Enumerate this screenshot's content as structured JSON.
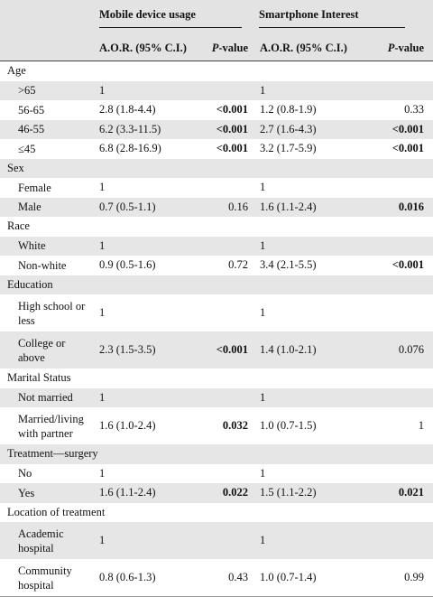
{
  "header": {
    "group1": "Mobile device usage",
    "group2": "Smartphone Interest",
    "aor1": "A.O.R. (95% C.I.)",
    "p1_prefix": "P",
    "p1_suffix": "-value",
    "aor2": "A.O.R. (95% C.I.)",
    "p2_prefix": "P",
    "p2_suffix": "-value"
  },
  "sections": {
    "age": {
      "title": "Age",
      "rows": [
        {
          "label": ">65",
          "mdu_aor": "1",
          "mdu_p": "",
          "si_aor": "1",
          "si_p": ""
        },
        {
          "label": "56-65",
          "mdu_aor": "2.8 (1.8-4.4)",
          "mdu_p": "<0.001",
          "si_aor": "1.2 (0.8-1.9)",
          "si_p": "0.33"
        },
        {
          "label": "46-55",
          "mdu_aor": "6.2 (3.3-11.5)",
          "mdu_p": "<0.001",
          "si_aor": "2.7 (1.6-4.3)",
          "si_p": "<0.001"
        },
        {
          "label": "≤45",
          "mdu_aor": "6.8 (2.8-16.9)",
          "mdu_p": "<0.001",
          "si_aor": "3.2 (1.7-5.9)",
          "si_p": "<0.001"
        }
      ]
    },
    "sex": {
      "title": "Sex",
      "rows": [
        {
          "label": "Female",
          "mdu_aor": "1",
          "mdu_p": "",
          "si_aor": "1",
          "si_p": ""
        },
        {
          "label": "Male",
          "mdu_aor": "0.7 (0.5-1.1)",
          "mdu_p": "0.16",
          "si_aor": "1.6 (1.1-2.4)",
          "si_p": "0.016"
        }
      ]
    },
    "race": {
      "title": "Race",
      "rows": [
        {
          "label": "White",
          "mdu_aor": "1",
          "mdu_p": "",
          "si_aor": "1",
          "si_p": ""
        },
        {
          "label": "Non-white",
          "mdu_aor": "0.9 (0.5-1.6)",
          "mdu_p": "0.72",
          "si_aor": "3.4 (2.1-5.5)",
          "si_p": "<0.001"
        }
      ]
    },
    "education": {
      "title": "Education",
      "rows": [
        {
          "label_line1": "High school or",
          "label_line2": "less",
          "mdu_aor": "1",
          "mdu_p": "",
          "si_aor": "1",
          "si_p": ""
        },
        {
          "label_line1": "College or",
          "label_line2": "above",
          "mdu_aor": "2.3 (1.5-3.5)",
          "mdu_p": "<0.001",
          "si_aor": "1.4 (1.0-2.1)",
          "si_p": "0.076"
        }
      ]
    },
    "marital": {
      "title": "Marital Status",
      "rows": [
        {
          "label": "Not married",
          "mdu_aor": "1",
          "mdu_p": "",
          "si_aor": "1",
          "si_p": ""
        },
        {
          "label_line1": "Married/living",
          "label_line2": "with partner",
          "mdu_aor": "1.6 (1.0-2.4)",
          "mdu_p": "0.032",
          "si_aor": "1.0 (0.7-1.5)",
          "si_p": "1"
        }
      ]
    },
    "treatment": {
      "title": "Treatment—surgery",
      "rows": [
        {
          "label": "No",
          "mdu_aor": "1",
          "mdu_p": "",
          "si_aor": "1",
          "si_p": ""
        },
        {
          "label": "Yes",
          "mdu_aor": "1.6 (1.1-2.4)",
          "mdu_p": "0.022",
          "si_aor": "1.5 (1.1-2.2)",
          "si_p": "0.021"
        }
      ]
    },
    "location": {
      "title": "Location of treatment",
      "rows": [
        {
          "label_line1": "Academic",
          "label_line2": "hospital",
          "mdu_aor": "1",
          "mdu_p": "",
          "si_aor": "1",
          "si_p": ""
        },
        {
          "label_line1": "Community",
          "label_line2": "hospital",
          "mdu_aor": "0.8 (0.6-1.3)",
          "mdu_p": "0.43",
          "si_aor": "1.0 (0.7-1.4)",
          "si_p": "0.99"
        }
      ]
    }
  }
}
